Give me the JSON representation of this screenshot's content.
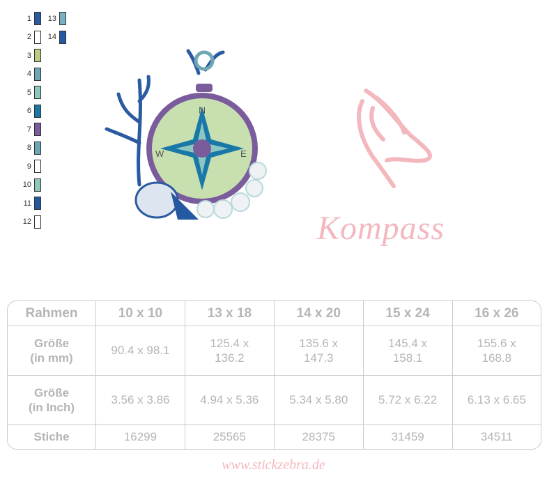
{
  "palette": [
    {
      "n": "1",
      "color": "#2a5aa0"
    },
    {
      "n": "2",
      "color": "#ffffff"
    },
    {
      "n": "3",
      "color": "#b8cc84"
    },
    {
      "n": "4",
      "color": "#6fa8b4"
    },
    {
      "n": "5",
      "color": "#8cc8c0"
    },
    {
      "n": "6",
      "color": "#1a78a8"
    },
    {
      "n": "7",
      "color": "#7a5c9c"
    },
    {
      "n": "8",
      "color": "#6aa8b8"
    },
    {
      "n": "9",
      "color": "#ffffff"
    },
    {
      "n": "10",
      "color": "#8cc8bc"
    },
    {
      "n": "11",
      "color": "#2458a0"
    },
    {
      "n": "12",
      "color": "#ffffff"
    },
    {
      "n": "13",
      "color": "#78b0c0"
    },
    {
      "n": "14",
      "color": "#2458a0"
    }
  ],
  "compass_letters": {
    "n": "N",
    "e": "E",
    "w": "W"
  },
  "title": "Kompass",
  "table": {
    "rows": [
      [
        "Rahmen",
        "10 x 10",
        "13 x 18",
        "14 x 20",
        "15 x 24",
        "16 x 26"
      ],
      [
        "Größe\n(in mm)",
        "90.4 x 98.1",
        "125.4 x\n136.2",
        "135.6 x\n147.3",
        "145.4 x\n158.1",
        "155.6 x\n168.8"
      ],
      [
        "Größe\n(in Inch)",
        "3.56 x 3.86",
        "4.94 x 5.36",
        "5.34 x 5.80",
        "5.72 x 6.22",
        "6.13 x 6.65"
      ],
      [
        "Stiche",
        "16299",
        "25565",
        "28375",
        "31459",
        "34511"
      ]
    ]
  },
  "website": "www.stickzebra.de",
  "accent_pink": "#f3b8be"
}
